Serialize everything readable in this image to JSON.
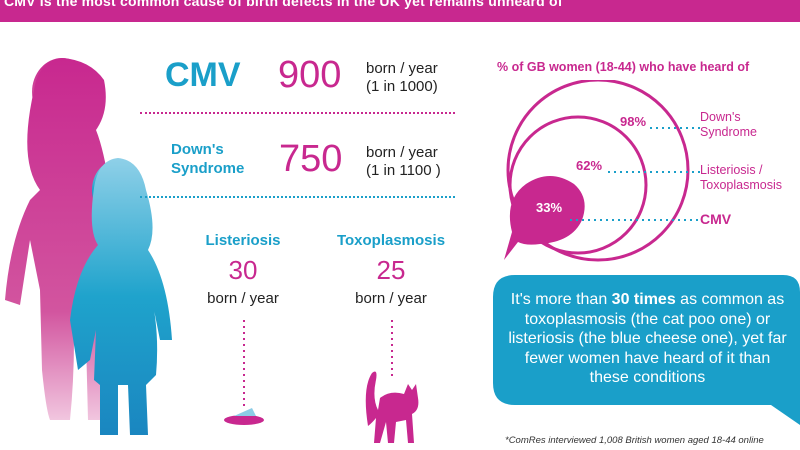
{
  "header": {
    "text": "CMV is the most common cause of birth defects in the UK yet remains unheard of"
  },
  "stats": {
    "cmv": {
      "label": "CMV",
      "number": "900",
      "unit": "born / year",
      "ratio": "(1 in 1000)"
    },
    "downs": {
      "label_line1": "Down's",
      "label_line2": "Syndrome",
      "number": "750",
      "unit": "born / year",
      "ratio": "(1 in 1100 )"
    },
    "listeriosis": {
      "label": "Listeriosis",
      "number": "30",
      "unit": "born / year"
    },
    "toxoplasmosis": {
      "label": "Toxoplasmosis",
      "number": "25",
      "unit": "born / year"
    }
  },
  "awareness": {
    "title": "% of GB women (18-44) who have heard of",
    "items": [
      {
        "percent": "98%",
        "legend_line1": "Down's",
        "legend_line2": "Syndrome"
      },
      {
        "percent": "62%",
        "legend_line1": "Listeriosis /",
        "legend_line2": "Toxoplasmosis"
      },
      {
        "percent": "33%",
        "legend_line1": "CMV",
        "legend_line2": ""
      }
    ]
  },
  "callout": {
    "part1": "It's more than ",
    "bold": "30 times",
    "part2": " as common as toxoplasmosis (the cat poo one) or listeriosis (the blue cheese one), yet far fewer women have heard of it than these conditions"
  },
  "footnote": "*ComRes interviewed 1,008 British women aged 18-44 online",
  "colors": {
    "magenta": "#c8288f",
    "blue": "#1a9fc9"
  }
}
